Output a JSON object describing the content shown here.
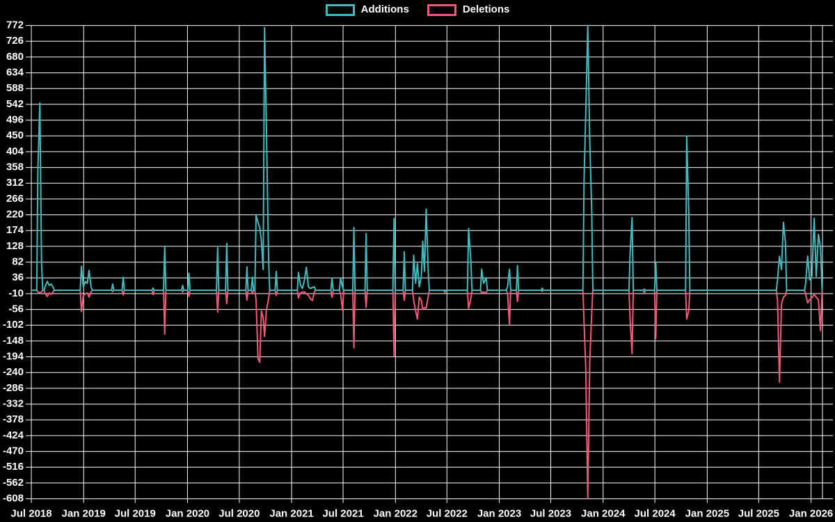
{
  "page": {
    "background": "#000000",
    "grid_color": "#ffffff",
    "text_color": "#ffffff"
  },
  "legend": {
    "items": [
      {
        "label": "Additions",
        "color": "#3fbcc0"
      },
      {
        "label": "Deletions",
        "color": "#f4587a"
      }
    ]
  },
  "chart_data": {
    "type": "line",
    "title": "",
    "grid": true,
    "legend_position": "top-center",
    "ylim": [
      -608,
      772
    ],
    "y_ticks": [
      772,
      726,
      680,
      634,
      588,
      542,
      496,
      450,
      404,
      358,
      312,
      266,
      220,
      174,
      128,
      82,
      36,
      -10,
      -56,
      -102,
      -148,
      -194,
      -240,
      -286,
      -332,
      -378,
      -424,
      -470,
      -516,
      -562,
      -608
    ],
    "x_ticks": [
      {
        "label": "Jul 2018",
        "date": "2018-07-01"
      },
      {
        "label": "Jan 2019",
        "date": "2019-01-01"
      },
      {
        "label": "Jul 2019",
        "date": "2019-07-01"
      },
      {
        "label": "Jan 2020",
        "date": "2020-01-01"
      },
      {
        "label": "Jul 2020",
        "date": "2020-07-01"
      },
      {
        "label": "Jan 2021",
        "date": "2021-01-01"
      },
      {
        "label": "Jul 2021",
        "date": "2021-07-01"
      },
      {
        "label": "Jan 2022",
        "date": "2022-01-01"
      },
      {
        "label": "Jul 2022",
        "date": "2022-07-01"
      },
      {
        "label": "Jan 2023",
        "date": "2023-01-01"
      },
      {
        "label": "Jul 2023",
        "date": "2023-07-01"
      },
      {
        "label": "Jan 2024",
        "date": "2024-01-01"
      },
      {
        "label": "Jul 2024",
        "date": "2024-07-01"
      },
      {
        "label": "Jan 2025",
        "date": "2025-01-01"
      },
      {
        "label": "Jul 2025",
        "date": "2025-07-01"
      },
      {
        "label": "Jan 2026",
        "date": "2026-01-01"
      }
    ],
    "series": [
      {
        "name": "Additions",
        "color": "#3fbcc0",
        "field": 1
      },
      {
        "name": "Deletions",
        "color": "#f4587a",
        "field": 2
      }
    ],
    "point_format": [
      "week_date",
      "additions",
      "deletions"
    ],
    "points": [
      [
        "2018-07-01",
        0,
        0
      ],
      [
        "2018-07-24",
        350,
        -5
      ],
      [
        "2018-07-31",
        546,
        -8
      ],
      [
        "2018-08-06",
        80,
        -5
      ],
      [
        "2018-08-19",
        12,
        -10
      ],
      [
        "2018-08-26",
        26,
        -18
      ],
      [
        "2018-09-02",
        14,
        -8
      ],
      [
        "2018-09-09",
        18,
        -12
      ],
      [
        "2018-09-16",
        8,
        -4
      ],
      [
        "2018-12-24",
        70,
        -62
      ],
      [
        "2018-12-31",
        10,
        -16
      ],
      [
        "2019-01-07",
        25,
        -10
      ],
      [
        "2019-01-14",
        20,
        -8
      ],
      [
        "2019-01-20",
        58,
        -20
      ],
      [
        "2019-01-27",
        10,
        -5
      ],
      [
        "2019-04-13",
        18,
        -4
      ],
      [
        "2019-05-20",
        38,
        -14
      ],
      [
        "2019-09-02",
        6,
        -13
      ],
      [
        "2019-10-13",
        128,
        -128
      ],
      [
        "2019-12-15",
        14,
        -5
      ],
      [
        "2020-01-06",
        50,
        -18
      ],
      [
        "2020-04-16",
        124,
        -64
      ],
      [
        "2020-05-18",
        137,
        -39
      ],
      [
        "2020-07-28",
        68,
        -29
      ],
      [
        "2020-08-16",
        38,
        -10
      ],
      [
        "2020-08-29",
        220,
        -28
      ],
      [
        "2020-09-05",
        197,
        -199
      ],
      [
        "2020-09-11",
        183,
        -210
      ],
      [
        "2020-09-17",
        142,
        -60
      ],
      [
        "2020-09-23",
        60,
        -80
      ],
      [
        "2020-09-28",
        766,
        -135
      ],
      [
        "2020-10-04",
        495,
        -60
      ],
      [
        "2020-10-12",
        90,
        -25
      ],
      [
        "2020-11-08",
        55,
        -15
      ],
      [
        "2021-01-25",
        52,
        -23
      ],
      [
        "2021-02-01",
        15,
        -8
      ],
      [
        "2021-02-08",
        5,
        -5
      ],
      [
        "2021-02-15",
        30,
        -5
      ],
      [
        "2021-02-22",
        67,
        -10
      ],
      [
        "2021-03-01",
        10,
        -15
      ],
      [
        "2021-03-08",
        5,
        -25
      ],
      [
        "2021-03-15",
        8,
        -30
      ],
      [
        "2021-03-22",
        10,
        -5
      ],
      [
        "2021-05-23",
        35,
        -21
      ],
      [
        "2021-06-22",
        36,
        -10
      ],
      [
        "2021-06-29",
        8,
        -58
      ],
      [
        "2021-08-08",
        183,
        -168
      ],
      [
        "2021-09-20",
        165,
        -50
      ],
      [
        "2021-12-27",
        209,
        -192
      ],
      [
        "2022-02-01",
        112,
        -30
      ],
      [
        "2022-03-06",
        102,
        -30
      ],
      [
        "2022-03-13",
        20,
        -60
      ],
      [
        "2022-03-19",
        78,
        -84
      ],
      [
        "2022-03-26",
        10,
        -20
      ],
      [
        "2022-04-02",
        40,
        -30
      ],
      [
        "2022-04-07",
        143,
        -55
      ],
      [
        "2022-04-13",
        55,
        -51
      ],
      [
        "2022-04-19",
        237,
        -52
      ],
      [
        "2022-04-26",
        60,
        -20
      ],
      [
        "2022-06-24",
        0,
        -6
      ],
      [
        "2022-09-15",
        180,
        -53
      ],
      [
        "2022-09-23",
        90,
        -25
      ],
      [
        "2022-10-31",
        61,
        -8
      ],
      [
        "2022-11-07",
        20,
        -5
      ],
      [
        "2022-11-16",
        36,
        -8
      ],
      [
        "2023-01-30",
        10,
        -9
      ],
      [
        "2023-02-06",
        61,
        -100
      ],
      [
        "2023-03-06",
        72,
        -33
      ],
      [
        "2023-06-01",
        6,
        -3
      ],
      [
        "2023-10-26",
        325,
        -95
      ],
      [
        "2023-11-01",
        515,
        -226
      ],
      [
        "2023-11-08",
        772,
        -608
      ],
      [
        "2023-11-15",
        440,
        -212
      ],
      [
        "2023-11-22",
        230,
        -65
      ],
      [
        "2024-04-05",
        110,
        -87
      ],
      [
        "2024-04-12",
        212,
        -185
      ],
      [
        "2024-05-25",
        3,
        -8
      ],
      [
        "2024-07-04",
        82,
        -140
      ],
      [
        "2024-10-21",
        450,
        -84
      ],
      [
        "2024-10-28",
        230,
        -60
      ],
      [
        "2025-09-05",
        30,
        -30
      ],
      [
        "2025-09-12",
        99,
        -268
      ],
      [
        "2025-09-19",
        60,
        -40
      ],
      [
        "2025-09-26",
        198,
        -20
      ],
      [
        "2025-10-03",
        139,
        -15
      ],
      [
        "2025-12-13",
        20,
        -12
      ],
      [
        "2025-12-20",
        100,
        -37
      ],
      [
        "2025-12-27",
        30,
        -28
      ],
      [
        "2026-01-04",
        42,
        -22
      ],
      [
        "2026-01-12",
        210,
        -12
      ],
      [
        "2026-01-19",
        40,
        -20
      ],
      [
        "2026-01-27",
        163,
        -28
      ],
      [
        "2026-02-03",
        126,
        -118
      ],
      [
        "2026-02-09",
        0,
        0
      ]
    ]
  }
}
